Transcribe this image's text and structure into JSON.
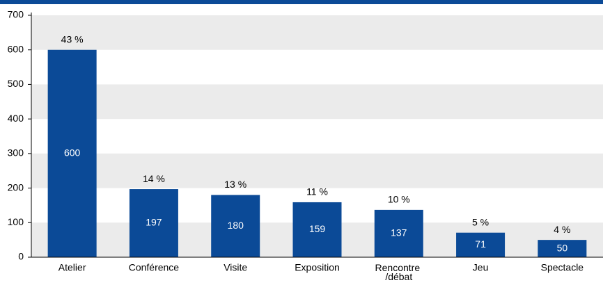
{
  "chart_data": {
    "type": "bar",
    "categories": [
      "Atelier",
      "Conférence",
      "Visite",
      "Exposition",
      "Rencontre /débat",
      "Jeu",
      "Spectacle"
    ],
    "values": [
      600,
      197,
      180,
      159,
      137,
      71,
      50
    ],
    "share_labels": [
      "43 %",
      "14 %",
      "13 %",
      "11 %",
      "10 %",
      "5 %",
      "4 %"
    ],
    "color": "#0b4a97",
    "ylim": [
      0,
      700
    ],
    "yticks": [
      0,
      100,
      200,
      300,
      400,
      500,
      600,
      700
    ],
    "banded_grid": true,
    "band_color": "#ebebeb"
  }
}
